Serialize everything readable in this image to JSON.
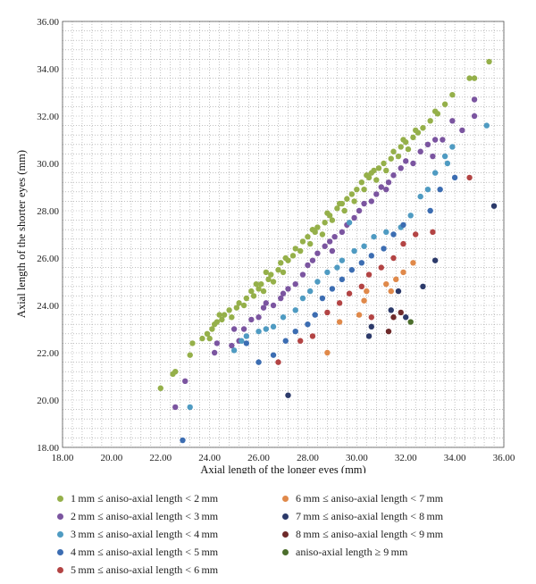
{
  "chart_data": {
    "type": "scatter",
    "title": "",
    "xlabel": "Axial length of the longer eyes (mm)",
    "ylabel": "Axial length of the shorter eyes (mm)",
    "xlim": [
      18,
      36
    ],
    "ylim": [
      18,
      36
    ],
    "xticks": [
      "18.00",
      "20.00",
      "22.00",
      "24.00",
      "26.00",
      "28.00",
      "30.00",
      "32.00",
      "34.00",
      "36.00"
    ],
    "yticks": [
      "18.00",
      "20.00",
      "22.00",
      "24.00",
      "26.00",
      "28.00",
      "30.00",
      "32.00",
      "34.00",
      "36.00"
    ],
    "grid": true,
    "legend_position": "bottom",
    "series": [
      {
        "name": "1 mm ≤ aniso-axial length < 2 mm",
        "color": "#95b04a",
        "points": [
          [
            22.0,
            20.5
          ],
          [
            22.5,
            21.1
          ],
          [
            22.6,
            21.2
          ],
          [
            23.2,
            21.9
          ],
          [
            23.3,
            22.4
          ],
          [
            23.7,
            22.6
          ],
          [
            23.9,
            22.8
          ],
          [
            24.0,
            22.6
          ],
          [
            24.1,
            23.0
          ],
          [
            24.2,
            23.2
          ],
          [
            24.3,
            23.3
          ],
          [
            24.5,
            23.4
          ],
          [
            24.6,
            23.6
          ],
          [
            24.8,
            23.8
          ],
          [
            24.9,
            23.5
          ],
          [
            25.1,
            23.9
          ],
          [
            25.2,
            24.1
          ],
          [
            25.4,
            24.0
          ],
          [
            25.5,
            24.3
          ],
          [
            25.7,
            24.6
          ],
          [
            25.8,
            24.4
          ],
          [
            26.0,
            24.7
          ],
          [
            26.1,
            24.9
          ],
          [
            26.2,
            24.6
          ],
          [
            26.4,
            25.1
          ],
          [
            26.5,
            25.3
          ],
          [
            26.6,
            25.0
          ],
          [
            26.8,
            25.5
          ],
          [
            26.9,
            25.8
          ],
          [
            27.0,
            25.4
          ],
          [
            27.2,
            25.9
          ],
          [
            27.4,
            26.1
          ],
          [
            27.5,
            26.4
          ],
          [
            27.7,
            26.3
          ],
          [
            27.8,
            26.7
          ],
          [
            28.0,
            26.9
          ],
          [
            28.1,
            26.6
          ],
          [
            28.3,
            27.1
          ],
          [
            28.4,
            27.3
          ],
          [
            28.6,
            27.0
          ],
          [
            28.7,
            27.5
          ],
          [
            28.9,
            27.8
          ],
          [
            29.0,
            27.6
          ],
          [
            29.2,
            28.1
          ],
          [
            29.3,
            28.3
          ],
          [
            29.5,
            28.0
          ],
          [
            29.6,
            28.5
          ],
          [
            29.8,
            28.7
          ],
          [
            29.9,
            28.4
          ],
          [
            30.0,
            28.9
          ],
          [
            30.2,
            29.2
          ],
          [
            30.3,
            28.9
          ],
          [
            30.5,
            29.4
          ],
          [
            30.6,
            29.6
          ],
          [
            30.8,
            29.3
          ],
          [
            30.9,
            29.8
          ],
          [
            31.1,
            30.0
          ],
          [
            31.2,
            29.7
          ],
          [
            31.4,
            30.2
          ],
          [
            31.5,
            30.5
          ],
          [
            31.7,
            30.3
          ],
          [
            31.8,
            30.7
          ],
          [
            32.0,
            30.9
          ],
          [
            32.1,
            30.6
          ],
          [
            32.3,
            31.1
          ],
          [
            32.5,
            31.3
          ],
          [
            32.7,
            31.5
          ],
          [
            33.0,
            31.8
          ],
          [
            33.3,
            32.1
          ],
          [
            33.6,
            32.5
          ],
          [
            33.9,
            32.9
          ],
          [
            34.6,
            33.6
          ],
          [
            34.8,
            33.6
          ],
          [
            35.4,
            34.3
          ],
          [
            24.4,
            23.6
          ],
          [
            25.9,
            24.9
          ],
          [
            27.1,
            26.0
          ],
          [
            28.2,
            27.2
          ],
          [
            29.4,
            28.3
          ],
          [
            30.7,
            29.7
          ],
          [
            31.9,
            31.0
          ],
          [
            33.2,
            32.2
          ],
          [
            26.3,
            25.4
          ],
          [
            28.8,
            27.9
          ],
          [
            30.4,
            29.5
          ],
          [
            32.4,
            31.4
          ]
        ]
      },
      {
        "name": "2 mm ≤ aniso-axial length < 3 mm",
        "color": "#7b55a0",
        "points": [
          [
            22.6,
            19.7
          ],
          [
            23.0,
            20.8
          ],
          [
            24.2,
            22.0
          ],
          [
            24.3,
            22.4
          ],
          [
            24.9,
            22.3
          ],
          [
            25.2,
            22.5
          ],
          [
            25.4,
            23.0
          ],
          [
            25.7,
            23.4
          ],
          [
            26.0,
            23.5
          ],
          [
            26.2,
            23.9
          ],
          [
            26.3,
            24.1
          ],
          [
            26.6,
            24.0
          ],
          [
            26.9,
            24.3
          ],
          [
            27.2,
            24.7
          ],
          [
            27.5,
            24.9
          ],
          [
            27.8,
            25.3
          ],
          [
            28.0,
            25.7
          ],
          [
            28.2,
            25.9
          ],
          [
            28.4,
            26.2
          ],
          [
            28.7,
            26.5
          ],
          [
            28.9,
            26.7
          ],
          [
            29.1,
            26.9
          ],
          [
            29.4,
            27.1
          ],
          [
            29.6,
            27.4
          ],
          [
            29.9,
            27.7
          ],
          [
            30.1,
            28.0
          ],
          [
            30.3,
            28.3
          ],
          [
            30.6,
            28.4
          ],
          [
            30.8,
            28.7
          ],
          [
            31.0,
            29.0
          ],
          [
            31.3,
            29.2
          ],
          [
            31.5,
            29.5
          ],
          [
            31.8,
            29.8
          ],
          [
            32.0,
            30.1
          ],
          [
            32.3,
            30.0
          ],
          [
            32.6,
            30.5
          ],
          [
            32.9,
            30.8
          ],
          [
            33.2,
            31.0
          ],
          [
            33.5,
            31.0
          ],
          [
            33.9,
            31.8
          ],
          [
            34.3,
            31.4
          ],
          [
            34.8,
            32.0
          ],
          [
            34.8,
            32.7
          ],
          [
            31.2,
            28.9
          ],
          [
            29.0,
            26.3
          ],
          [
            27.0,
            24.5
          ],
          [
            25.0,
            23.0
          ],
          [
            33.1,
            30.3
          ]
        ]
      },
      {
        "name": "3 mm ≤ aniso-axial length < 4 mm",
        "color": "#4f9bc2",
        "points": [
          [
            23.2,
            19.7
          ],
          [
            25.0,
            22.1
          ],
          [
            25.3,
            22.5
          ],
          [
            25.5,
            22.7
          ],
          [
            26.0,
            22.9
          ],
          [
            26.6,
            23.1
          ],
          [
            27.0,
            23.5
          ],
          [
            27.5,
            23.8
          ],
          [
            27.8,
            24.3
          ],
          [
            28.1,
            24.6
          ],
          [
            28.4,
            25.0
          ],
          [
            28.8,
            25.4
          ],
          [
            29.2,
            25.6
          ],
          [
            29.4,
            25.9
          ],
          [
            29.9,
            26.3
          ],
          [
            30.3,
            26.5
          ],
          [
            30.7,
            26.9
          ],
          [
            31.2,
            27.1
          ],
          [
            31.8,
            27.3
          ],
          [
            32.2,
            27.8
          ],
          [
            32.6,
            28.6
          ],
          [
            32.9,
            28.9
          ],
          [
            33.2,
            29.6
          ],
          [
            33.6,
            30.3
          ],
          [
            33.7,
            30.0
          ],
          [
            33.9,
            30.7
          ],
          [
            35.3,
            31.6
          ],
          [
            29.7,
            27.5
          ],
          [
            26.3,
            23.0
          ]
        ]
      },
      {
        "name": "4 mm ≤ aniso-axial length < 5 mm",
        "color": "#3c6db2",
        "points": [
          [
            22.9,
            18.3
          ],
          [
            25.5,
            22.4
          ],
          [
            26.0,
            21.6
          ],
          [
            26.6,
            21.9
          ],
          [
            27.1,
            22.5
          ],
          [
            27.5,
            22.9
          ],
          [
            28.0,
            23.2
          ],
          [
            28.3,
            23.6
          ],
          [
            28.6,
            24.3
          ],
          [
            29.0,
            24.7
          ],
          [
            29.4,
            25.1
          ],
          [
            29.8,
            25.5
          ],
          [
            30.2,
            25.8
          ],
          [
            30.6,
            26.1
          ],
          [
            31.1,
            26.4
          ],
          [
            31.5,
            27.0
          ],
          [
            33.0,
            28.0
          ],
          [
            33.4,
            28.9
          ],
          [
            34.0,
            29.4
          ],
          [
            31.9,
            27.4
          ]
        ]
      },
      {
        "name": "5 mm ≤ aniso-axial length < 6 mm",
        "color": "#b34444",
        "points": [
          [
            26.8,
            21.6
          ],
          [
            27.7,
            22.5
          ],
          [
            28.2,
            22.7
          ],
          [
            28.8,
            23.7
          ],
          [
            29.3,
            24.1
          ],
          [
            29.7,
            24.5
          ],
          [
            30.2,
            24.8
          ],
          [
            30.5,
            25.3
          ],
          [
            31.0,
            25.6
          ],
          [
            31.5,
            26.0
          ],
          [
            31.9,
            26.6
          ],
          [
            32.4,
            27.0
          ],
          [
            33.1,
            27.1
          ],
          [
            34.6,
            29.4
          ],
          [
            30.6,
            23.5
          ]
        ]
      },
      {
        "name": "6 mm ≤ aniso-axial length < 7 mm",
        "color": "#e0894a",
        "points": [
          [
            28.8,
            22.0
          ],
          [
            29.3,
            23.3
          ],
          [
            30.1,
            23.6
          ],
          [
            30.3,
            24.2
          ],
          [
            30.4,
            24.6
          ],
          [
            31.2,
            24.9
          ],
          [
            31.6,
            25.1
          ],
          [
            31.4,
            24.6
          ],
          [
            31.9,
            25.4
          ],
          [
            32.3,
            25.8
          ]
        ]
      },
      {
        "name": "7 mm ≤ aniso-axial length < 8 mm",
        "color": "#2c3a6a",
        "points": [
          [
            27.2,
            20.2
          ],
          [
            30.5,
            22.7
          ],
          [
            30.6,
            23.1
          ],
          [
            31.4,
            23.8
          ],
          [
            31.7,
            24.6
          ],
          [
            32.0,
            23.5
          ],
          [
            32.7,
            24.8
          ],
          [
            33.2,
            25.9
          ],
          [
            35.6,
            28.2
          ]
        ]
      },
      {
        "name": "8 mm ≤ aniso-axial length < 9 mm",
        "color": "#6e2a2a",
        "points": [
          [
            31.3,
            22.9
          ],
          [
            31.5,
            23.5
          ],
          [
            31.8,
            23.7
          ]
        ]
      },
      {
        "name": "aniso-axial length ≥ 9 mm",
        "color": "#4c6e2c",
        "points": [
          [
            32.2,
            23.3
          ]
        ]
      }
    ]
  }
}
